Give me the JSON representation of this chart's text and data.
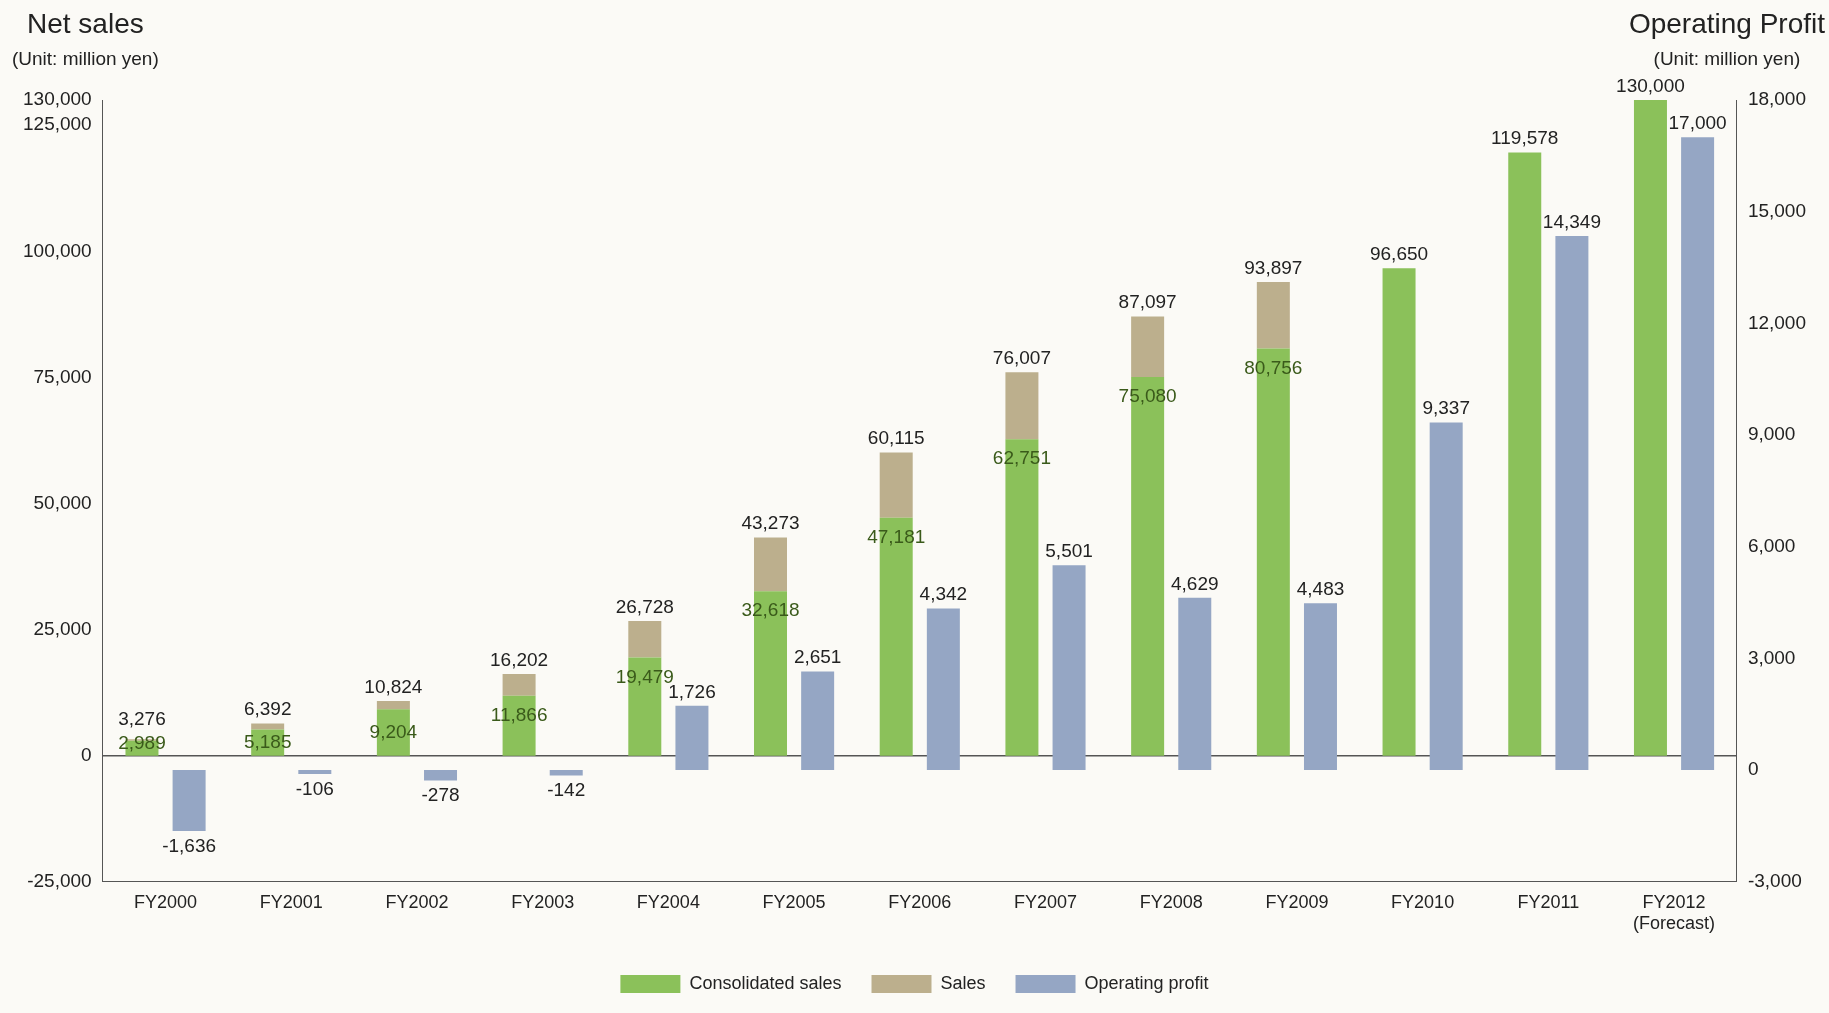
{
  "chart_data": {
    "type": "bar",
    "ylabel": "Net sales\n(Unit: million yen)",
    "y2label": "Operating Profit\n(Unit: million yen)",
    "categories": [
      "FY2000",
      "FY2001",
      "FY2002",
      "FY2003",
      "FY2004",
      "FY2005",
      "FY2006",
      "FY2007",
      "FY2008",
      "FY2009",
      "FY2010",
      "FY2011",
      "FY2012\n(Forecast)"
    ],
    "series": [
      {
        "name": "Consolidated sales",
        "color": "#8bc15a",
        "values": [
          2989,
          5185,
          9204,
          11866,
          19479,
          32618,
          47181,
          62751,
          75080,
          80756,
          96650,
          119578,
          130000
        ],
        "value_labels": [
          "2,989",
          "5,185",
          "9,204",
          "11,866",
          "19,479",
          "32,618",
          "47,181",
          "62,751",
          "75,080",
          "80,756",
          null,
          null,
          null
        ]
      },
      {
        "name": "Sales",
        "color": "#bcaf8d",
        "values": [
          287,
          1207,
          1620,
          4336,
          7249,
          10655,
          12934,
          13256,
          12017,
          13141,
          null,
          null,
          null
        ]
      },
      {
        "name": "Operating profit",
        "color": "#95a6c4",
        "axis": "y2",
        "values": [
          -1636,
          -106,
          -278,
          -142,
          1726,
          2651,
          4342,
          5501,
          4629,
          4483,
          9337,
          14349,
          17000
        ],
        "value_labels": [
          "-1,636",
          "-106",
          "-278",
          "-142",
          "1,726",
          "2,651",
          "4,342",
          "5,501",
          "4,629",
          "4,483",
          "9,337",
          "14,349",
          "17,000"
        ]
      }
    ],
    "stacked": true,
    "totals": [
      "3,276",
      "6,392",
      "10,824",
      "16,202",
      "26,728",
      "43,273",
      "60,115",
      "76,007",
      "87,097",
      "93,897",
      "96,650",
      "119,578",
      "130,000"
    ],
    "ylim": [
      -25000,
      130000
    ],
    "yticks": [
      {
        "value": -25000,
        "label": "-25,000"
      },
      0,
      {
        "value": 25000,
        "label": "25,000"
      },
      {
        "value": 50000,
        "label": "50,000"
      },
      {
        "value": 75000,
        "label": "75,000"
      },
      {
        "value": 100000,
        "label": "100,000"
      },
      {
        "value": 125000,
        "label": "125,000"
      },
      {
        "value": 130000,
        "label": "130,000"
      }
    ],
    "y2lim": [
      -3000,
      18000
    ],
    "y2ticks": [
      {
        "value": -3000,
        "label": "-3,000"
      },
      0,
      {
        "value": 3000,
        "label": "3,000"
      },
      {
        "value": 6000,
        "label": "6,000"
      },
      {
        "value": 9000,
        "label": "9,000"
      },
      {
        "value": 12000,
        "label": "12,000"
      },
      {
        "value": 15000,
        "label": "15,000"
      },
      {
        "value": 18000,
        "label": "18,000"
      }
    ],
    "ref_lines": [
      {
        "axis": "y",
        "value": 0,
        "color": "#555555"
      }
    ],
    "grid": false,
    "legend": "bottom"
  }
}
